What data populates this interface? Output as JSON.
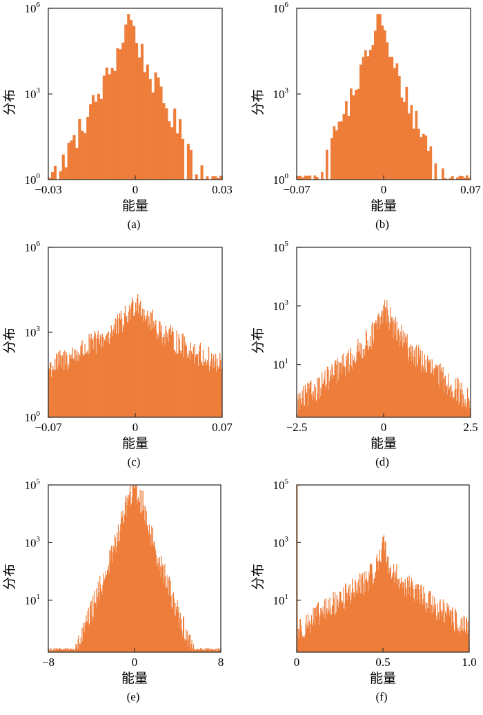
{
  "figure": {
    "y_label": "分布",
    "x_label": "能量",
    "bar_color": "#EE7D3A",
    "frame_color": "#333333"
  },
  "chart_data": [
    {
      "id": "a",
      "type": "bar",
      "caption": "(a)",
      "xlabel": "能量",
      "ylabel": "分布",
      "xlim": [
        -0.03,
        0.03
      ],
      "xticks": [
        {
          "v": -0.03,
          "t": "−0.03"
        },
        {
          "v": 0,
          "t": "0"
        },
        {
          "v": 0.03,
          "t": "0.03"
        }
      ],
      "ylim": [
        0,
        6
      ],
      "yticks": [
        {
          "v": 0,
          "base": "10",
          "exp": "0"
        },
        {
          "v": 3,
          "base": "10",
          "exp": "3"
        },
        {
          "v": 6,
          "base": "10",
          "exp": "6"
        }
      ],
      "yscale": "log",
      "bins": 64,
      "distribution": {
        "center": -0.002,
        "peak": 5.8,
        "core": 1.05,
        "core_width": 0.0045,
        "background": 0.3,
        "scale": 0.025,
        "sub_peaks": []
      }
    },
    {
      "id": "b",
      "type": "bar",
      "caption": "(b)",
      "xlabel": "能量",
      "ylabel": "分布",
      "xlim": [
        -0.07,
        0.07
      ],
      "xticks": [
        {
          "v": -0.07,
          "t": "−0.07"
        },
        {
          "v": 0,
          "t": "0"
        },
        {
          "v": 0.07,
          "t": "0.07"
        }
      ],
      "ylim": [
        0,
        6
      ],
      "yticks": [
        {
          "v": 0,
          "base": "10",
          "exp": "0"
        },
        {
          "v": 3,
          "base": "10",
          "exp": "3"
        },
        {
          "v": 6,
          "base": "10",
          "exp": "6"
        }
      ],
      "yscale": "log",
      "bins": 72,
      "distribution": {
        "center": -0.004,
        "peak": 5.8,
        "core": 1.05,
        "core_width": 0.01,
        "background": 0.25,
        "scale": 0.05,
        "sub_peaks": []
      }
    },
    {
      "id": "c",
      "type": "bar",
      "caption": "(c)",
      "xlabel": "能量",
      "ylabel": "分布",
      "xlim": [
        -0.07,
        0.07
      ],
      "xticks": [
        {
          "v": -0.07,
          "t": "−0.07"
        },
        {
          "v": 0,
          "t": "0"
        },
        {
          "v": 0.07,
          "t": "0.07"
        }
      ],
      "ylim": [
        0,
        6
      ],
      "yticks": [
        {
          "v": 0,
          "base": "10",
          "exp": "0"
        },
        {
          "v": 3,
          "base": "10",
          "exp": "3"
        },
        {
          "v": 6,
          "base": "10",
          "exp": "6"
        }
      ],
      "yscale": "log",
      "bins": 250,
      "distribution": {
        "center": 0.0015,
        "peak": 4.2,
        "core": 0.9,
        "core_width": 0.012,
        "background": 0.9,
        "scale": 0.11,
        "sub_peaks": []
      }
    },
    {
      "id": "d",
      "type": "bar",
      "caption": "(d)",
      "xlabel": "能量",
      "ylabel": "分布",
      "xlim": [
        -2.5,
        2.5
      ],
      "xticks": [
        {
          "v": -2.5,
          "t": "−2.5"
        },
        {
          "v": 0,
          "t": "0"
        },
        {
          "v": 2.5,
          "t": "2.5"
        }
      ],
      "ylim": [
        -0.8,
        5
      ],
      "yticks": [
        {
          "v": 1,
          "base": "10",
          "exp": "1"
        },
        {
          "v": 3,
          "base": "10",
          "exp": "3"
        },
        {
          "v": 5,
          "base": "10",
          "exp": "5"
        }
      ],
      "yscale": "log",
      "bins": 300,
      "distribution": {
        "center": 0.05,
        "peak": 2.95,
        "core": 0.85,
        "core_width": 0.35,
        "background": -0.5,
        "scale": 2.7,
        "sub_peaks": []
      }
    },
    {
      "id": "e",
      "type": "bar",
      "caption": "(e)",
      "xlabel": "能量",
      "ylabel": "分布",
      "xlim": [
        -8,
        8
      ],
      "xticks": [
        {
          "v": -8,
          "t": "−8"
        },
        {
          "v": 0,
          "t": "0"
        },
        {
          "v": 8,
          "t": "8"
        }
      ],
      "ylim": [
        -0.8,
        5
      ],
      "yticks": [
        {
          "v": 1,
          "base": "10",
          "exp": "1"
        },
        {
          "v": 3,
          "base": "10",
          "exp": "3"
        },
        {
          "v": 5,
          "base": "10",
          "exp": "5"
        }
      ],
      "yscale": "log",
      "bins": 300,
      "distribution": {
        "center": 0.0,
        "peak": 4.9,
        "core": 0.3,
        "core_width": 0.12,
        "background": -1.6,
        "scale": 6.2,
        "sub_peaks": [
          {
            "x": -0.8,
            "h": 0.5,
            "w": 0.7
          },
          {
            "x": 0.8,
            "h": 0.5,
            "w": 0.7
          }
        ]
      }
    },
    {
      "id": "f",
      "type": "bar",
      "caption": "(f)",
      "xlabel": "能量",
      "ylabel": "分布",
      "xlim": [
        0,
        1.0
      ],
      "xticks": [
        {
          "v": 0,
          "t": "0"
        },
        {
          "v": 0.5,
          "t": "0.5"
        },
        {
          "v": 1.0,
          "t": "1.0"
        }
      ],
      "ylim": [
        -0.8,
        5
      ],
      "yticks": [
        {
          "v": 1,
          "base": "10",
          "exp": "1"
        },
        {
          "v": 3,
          "base": "10",
          "exp": "3"
        },
        {
          "v": 5,
          "base": "10",
          "exp": "5"
        }
      ],
      "yscale": "log",
      "bins": 300,
      "distribution": {
        "center": 0.5,
        "peak": 3.2,
        "core": 1.1,
        "core_width": 0.025,
        "background": -0.5,
        "scale": 0.6,
        "sub_peaks": [],
        "edge_spike": {
          "x": 0.0,
          "h": 5.0
        }
      }
    }
  ]
}
